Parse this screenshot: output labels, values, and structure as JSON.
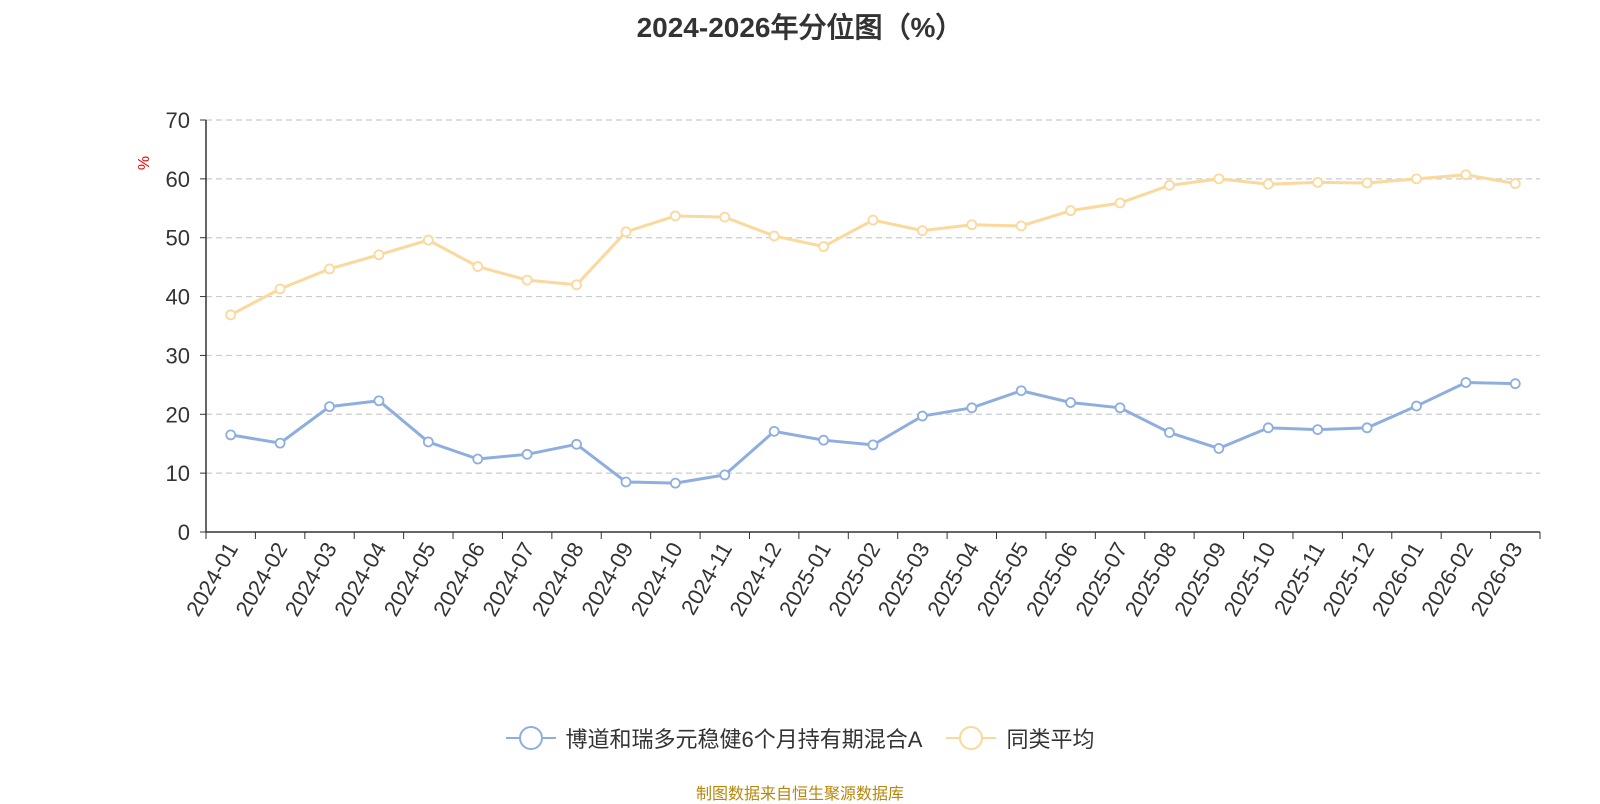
{
  "chart_data": {
    "type": "line",
    "title": "2024-2026年分位图（%）",
    "ylabel": "%",
    "ylim": [
      0,
      70
    ],
    "yticks": [
      0,
      10,
      20,
      30,
      40,
      50,
      60,
      70
    ],
    "grid": true,
    "legend_position": "bottom",
    "x": [
      "2024-01",
      "2024-02",
      "2024-03",
      "2024-04",
      "2024-05",
      "2024-06",
      "2024-07",
      "2024-08",
      "2024-09",
      "2024-10",
      "2024-11",
      "2024-12",
      "2025-01",
      "2025-02",
      "2025-03",
      "2025-04",
      "2025-05",
      "2025-06",
      "2025-07",
      "2025-08",
      "2025-09",
      "2025-10",
      "2025-11",
      "2025-12",
      "2026-01",
      "2026-02",
      "2026-03"
    ],
    "series": [
      {
        "name": "博道和瑞多元稳健6个月持有期混合A",
        "color": "#8eaee0",
        "values": [
          16.5,
          15.1,
          21.3,
          22.3,
          15.3,
          12.4,
          13.2,
          14.9,
          8.5,
          8.3,
          9.7,
          17.1,
          15.6,
          14.8,
          19.7,
          21.1,
          24.0,
          22.0,
          21.1,
          16.9,
          14.2,
          17.7,
          17.4,
          17.7,
          21.4,
          25.4,
          25.2
        ]
      },
      {
        "name": "同类平均",
        "color": "#fbd89b",
        "values": [
          36.9,
          41.3,
          44.7,
          47.1,
          49.6,
          45.1,
          42.8,
          42.0,
          51.0,
          53.7,
          53.5,
          50.3,
          48.5,
          53.0,
          51.2,
          52.2,
          52.0,
          54.6,
          55.9,
          58.9,
          60.0,
          59.1,
          59.4,
          59.3,
          60.0,
          60.7,
          59.2
        ]
      }
    ]
  },
  "footer": "制图数据来自恒生聚源数据库"
}
